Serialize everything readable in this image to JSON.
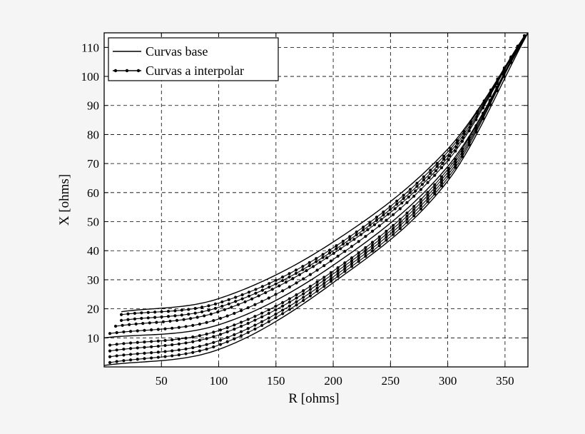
{
  "chart_data": {
    "type": "line",
    "title": "",
    "xlabel": "R [ohms]",
    "ylabel": "X [ohms]",
    "xlim": [
      0,
      370
    ],
    "ylim": [
      0,
      115
    ],
    "xticks": [
      50,
      100,
      150,
      200,
      250,
      300,
      350
    ],
    "yticks": [
      10,
      20,
      30,
      40,
      50,
      60,
      70,
      80,
      90,
      100,
      110
    ],
    "grid": true,
    "legend": {
      "position": "top-left",
      "entries": [
        {
          "label": "Curvas base",
          "style": "solid"
        },
        {
          "label": "Curvas a interpolar",
          "style": "solid-dots"
        }
      ]
    },
    "series": [
      {
        "name": "Curvas base",
        "style": "solid",
        "x": [
          15,
          100,
          200,
          300,
          370
        ],
        "y": [
          19,
          23.5,
          43,
          75,
          115
        ]
      },
      {
        "name": "Curvas base",
        "style": "solid",
        "x": [
          0,
          100,
          200,
          300,
          370
        ],
        "y": [
          10,
          14.5,
          35,
          69,
          115
        ]
      },
      {
        "name": "Curvas base",
        "style": "solid",
        "x": [
          0,
          100,
          200,
          300,
          370
        ],
        "y": [
          0.5,
          6,
          29,
          64,
          115
        ]
      },
      {
        "name": "Curvas a interpolar",
        "style": "dots",
        "x": [
          15,
          100,
          200,
          300,
          367
        ],
        "y": [
          18,
          22,
          41,
          74,
          114
        ]
      },
      {
        "name": "Curvas a interpolar",
        "style": "dots",
        "x": [
          15,
          100,
          200,
          300,
          367
        ],
        "y": [
          16,
          20.5,
          40,
          73,
          114
        ]
      },
      {
        "name": "Curvas a interpolar",
        "style": "dots",
        "x": [
          10,
          100,
          200,
          300,
          367
        ],
        "y": [
          14,
          19,
          39,
          72,
          114
        ]
      },
      {
        "name": "Curvas a interpolar",
        "style": "dots",
        "x": [
          5,
          100,
          200,
          300,
          367
        ],
        "y": [
          11.5,
          16.5,
          37,
          71,
          114
        ]
      },
      {
        "name": "Curvas a interpolar",
        "style": "dots",
        "x": [
          5,
          100,
          200,
          300,
          367
        ],
        "y": [
          7.5,
          12.5,
          33,
          68,
          114
        ]
      },
      {
        "name": "Curvas a interpolar",
        "style": "dots",
        "x": [
          5,
          100,
          200,
          300,
          367
        ],
        "y": [
          5.5,
          11,
          32,
          67,
          114
        ]
      },
      {
        "name": "Curvas a interpolar",
        "style": "dots",
        "x": [
          5,
          100,
          200,
          300,
          367
        ],
        "y": [
          3.5,
          9,
          31,
          66,
          114
        ]
      },
      {
        "name": "Curvas a interpolar",
        "style": "dots",
        "x": [
          5,
          100,
          200,
          300,
          367
        ],
        "y": [
          1.5,
          7.5,
          30,
          65,
          114
        ]
      }
    ]
  }
}
